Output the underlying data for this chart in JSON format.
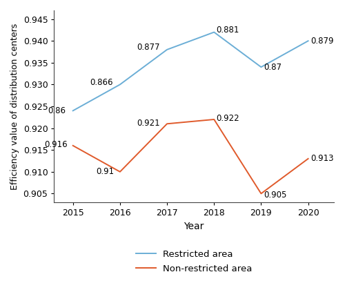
{
  "years": [
    2015,
    2016,
    2017,
    2018,
    2019,
    2020
  ],
  "restricted": [
    0.86,
    0.866,
    0.877,
    0.881,
    0.87,
    0.879
  ],
  "non_restricted": [
    0.916,
    0.91,
    0.921,
    0.922,
    0.905,
    0.913
  ],
  "restricted_color": "#6baed6",
  "non_restricted_color": "#e05a2b",
  "ylabel": "Efficiency value of distribution centers",
  "xlabel": "Year",
  "ytick_labels": [
    "0.905",
    "0.910",
    "0.915",
    "0.920",
    "0.925",
    "0.930",
    "0.935",
    "0.940",
    "0.945"
  ],
  "ytick_positions": [
    0.905,
    0.91,
    0.915,
    0.92,
    0.925,
    0.93,
    0.935,
    0.94,
    0.945
  ],
  "ylim_low": 0.903,
  "ylim_high": 0.947,
  "legend_restricted": "Restricted area",
  "legend_non_restricted": "Non-restricted area",
  "background_color": "#ffffff",
  "restricted_plot_values": [
    0.924,
    0.93,
    0.938,
    0.942,
    0.934,
    0.94
  ],
  "non_restricted_plot_values": [
    0.916,
    0.91,
    0.921,
    0.922,
    0.905,
    0.913
  ]
}
